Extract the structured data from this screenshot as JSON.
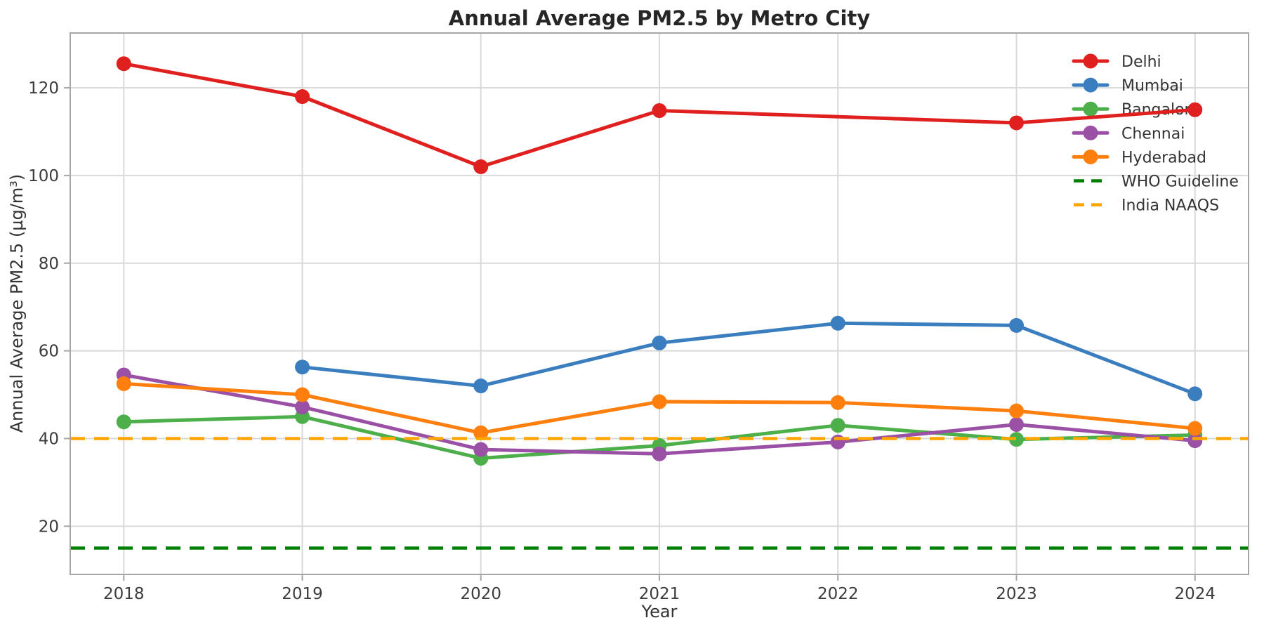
{
  "figure": {
    "background": "#ffffff",
    "grid_color": "#d9d9d9",
    "spine_color": "#a6a6a6",
    "text_color": "#333333"
  },
  "chart_data": {
    "type": "line",
    "title": "Annual Average PM2.5 by Metro City",
    "xlabel": "Year",
    "ylabel": "Annual Average PM2.5 (µg/m³)",
    "categories": [
      2018,
      2019,
      2020,
      2021,
      2022,
      2023,
      2024
    ],
    "yticks": [
      20,
      40,
      60,
      80,
      100,
      120
    ],
    "xlim": [
      2017.7,
      2024.3
    ],
    "ylim": [
      9,
      132.5
    ],
    "grid": true,
    "legend_position": "upper right",
    "series": [
      {
        "name": "Delhi",
        "color": "#e0201f",
        "marker": "circle",
        "values": [
          125.5,
          118.0,
          102.0,
          114.8,
          null,
          112.0,
          115.0
        ]
      },
      {
        "name": "Mumbai",
        "color": "#3a7ebf",
        "marker": "circle",
        "values": [
          null,
          56.3,
          52.0,
          61.8,
          66.3,
          65.8,
          50.2
        ]
      },
      {
        "name": "Bangalore",
        "color": "#4daf4a",
        "marker": "circle",
        "values": [
          43.8,
          45.0,
          35.5,
          38.4,
          43.0,
          39.8,
          40.8
        ]
      },
      {
        "name": "Chennai",
        "color": "#9a51a5",
        "marker": "circle",
        "values": [
          54.5,
          47.2,
          37.5,
          36.5,
          39.2,
          43.2,
          39.5
        ]
      },
      {
        "name": "Hyderabad",
        "color": "#ff7f0e",
        "marker": "circle",
        "values": [
          52.5,
          50.0,
          41.3,
          48.4,
          48.2,
          46.3,
          42.3
        ]
      }
    ],
    "reference_lines": [
      {
        "name": "WHO Guideline",
        "value": 15,
        "color": "#008000",
        "style": "dashed"
      },
      {
        "name": "India NAAQS",
        "value": 40,
        "color": "#ffa500",
        "style": "dashed"
      }
    ]
  }
}
